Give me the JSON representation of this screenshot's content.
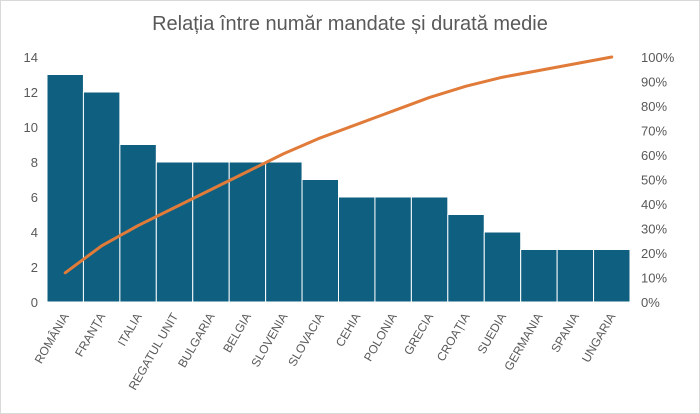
{
  "chart_data": {
    "type": "pareto",
    "title": "Relația între număr mandate și durată medie",
    "categories": [
      "ROMÂNIA",
      "FRANȚA",
      "ITALIA",
      "REGATUL UNIT",
      "BULGARIA",
      "BELGIA",
      "SLOVENIA",
      "SLOVACIA",
      "CEHIA",
      "POLONIA",
      "GRECIA",
      "CROAȚIA",
      "SUEDIA",
      "GERMANIA",
      "SPANIA",
      "UNGARIA"
    ],
    "values": [
      13,
      12,
      9,
      8,
      8,
      8,
      8,
      7,
      6,
      6,
      6,
      5,
      4,
      3,
      3,
      3
    ],
    "ylim": [
      0,
      14
    ],
    "yticks": [
      "0",
      "2",
      "4",
      "6",
      "8",
      "10",
      "12",
      "14"
    ],
    "y2lim": [
      0,
      100
    ],
    "y2ticks": [
      "0%",
      "10%",
      "20%",
      "30%",
      "40%",
      "50%",
      "60%",
      "70%",
      "80%",
      "90%",
      "100%"
    ],
    "cumulative_line": "cumulative percent",
    "grid": false,
    "colors": {
      "bar": "#0f5f80",
      "line": "#e07b39",
      "bar_border": "#ffffff"
    }
  }
}
